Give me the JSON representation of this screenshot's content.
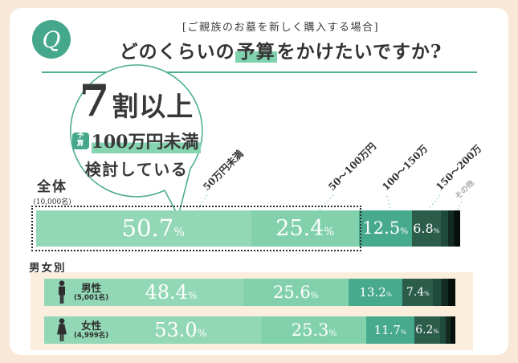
{
  "header": {
    "q": "Q",
    "subtitle": "[ご親族のお墓を新しく購入する場合]",
    "title_pre": "どのくらいの",
    "title_mark": "予算",
    "title_post": "をかけたいですか?"
  },
  "callout": {
    "line1_big": "7",
    "line1_rest": "割以上",
    "badge": "予\n算",
    "line2": "100万円未満",
    "line3": "検討している"
  },
  "section": {
    "gender_heading": "男女別"
  },
  "chart_data": {
    "type": "bar",
    "stacked": true,
    "orientation": "horizontal",
    "unit": "%",
    "categories": [
      "50万円未満",
      "50〜100万円",
      "100〜150万",
      "150〜200万",
      "その他"
    ],
    "series": [
      {
        "name": "全体",
        "count_label": "(10,000名)",
        "values": [
          50.7,
          25.4,
          12.5,
          6.8
        ],
        "labels": [
          "50.7",
          "25.4",
          "12.5",
          "6.8"
        ]
      },
      {
        "name": "男性",
        "count_label": "(5,001名)",
        "values": [
          48.4,
          25.6,
          13.2,
          7.4
        ],
        "labels": [
          "48.4",
          "25.6",
          "13.2",
          "7.4"
        ]
      },
      {
        "name": "女性",
        "count_label": "(4,999名)",
        "values": [
          53.0,
          25.3,
          11.7,
          6.2
        ],
        "labels": [
          "53.0",
          "25.3",
          "11.7",
          "6.2"
        ]
      }
    ]
  },
  "palette": {
    "accent": "#45A88C",
    "highlight": "#7FD2AD",
    "seg1": "#92D7B6",
    "seg2": "#82D1AC",
    "seg3": "#48AA8C",
    "seg4": "#2C5C4A",
    "dark1": "#1F4A3B",
    "dark2": "#122A20",
    "dark3": "#060F0B",
    "page_bg": "#F9E7D8",
    "strip_bg": "#FBEEDD",
    "text": "#333333",
    "muted": "#A8A8A8"
  }
}
